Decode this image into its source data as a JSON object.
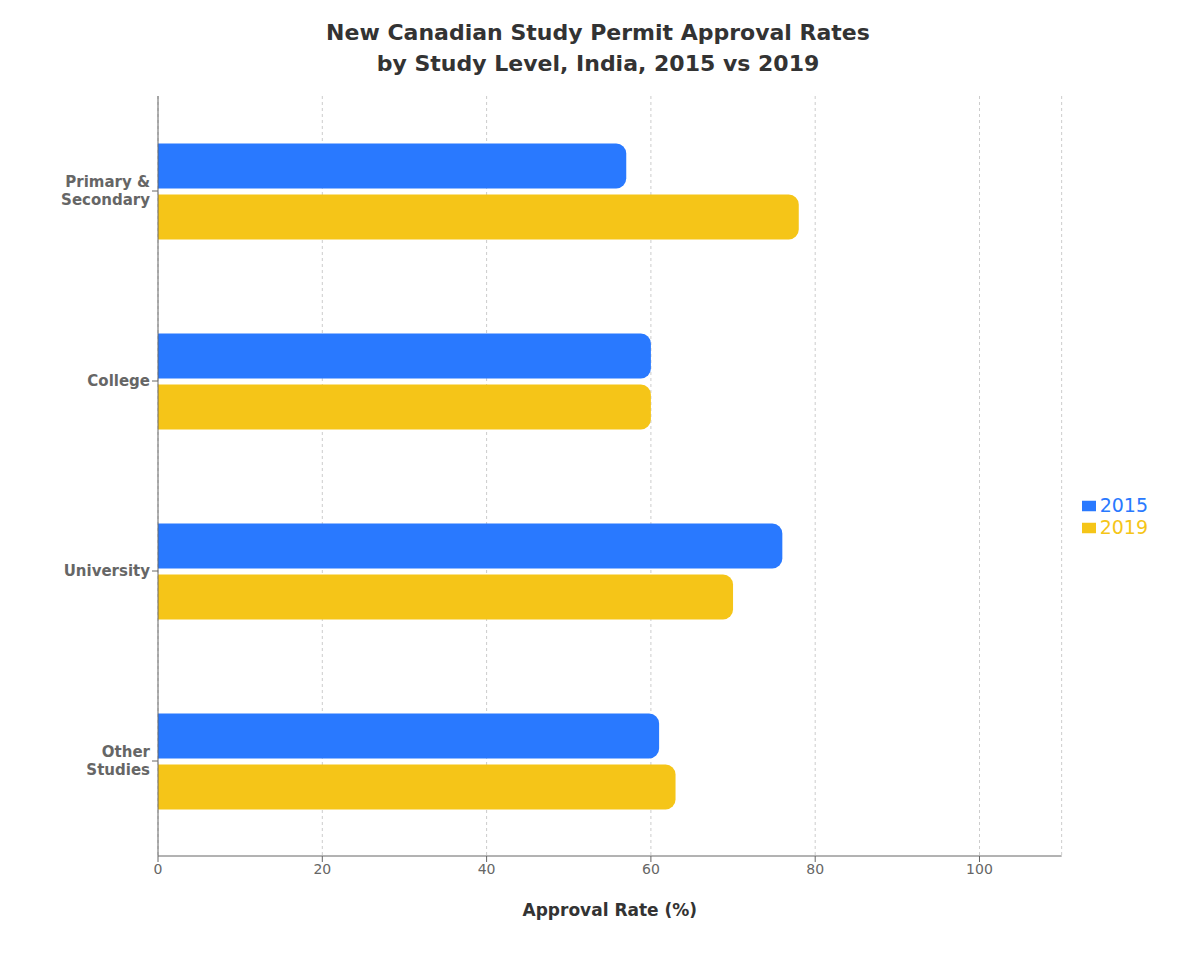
{
  "chart_data": {
    "type": "bar",
    "orientation": "horizontal",
    "title": "New Canadian Study Permit Approval Rates\nby Study Level, India, 2015 vs 2019",
    "categories": [
      "Primary &\nSecondary",
      "College",
      "University",
      "Other\nStudies"
    ],
    "series": [
      {
        "name": "2015",
        "color": "#2979FF",
        "values": [
          57,
          60,
          76,
          61
        ]
      },
      {
        "name": "2019",
        "color": "#F5C518",
        "values": [
          78,
          60,
          70,
          63
        ]
      }
    ],
    "xlabel": "Approval Rate (%)",
    "xlim": [
      0,
      110
    ],
    "xticks": [
      0,
      20,
      40,
      60,
      80,
      100
    ],
    "grid": true,
    "legend": "right"
  }
}
